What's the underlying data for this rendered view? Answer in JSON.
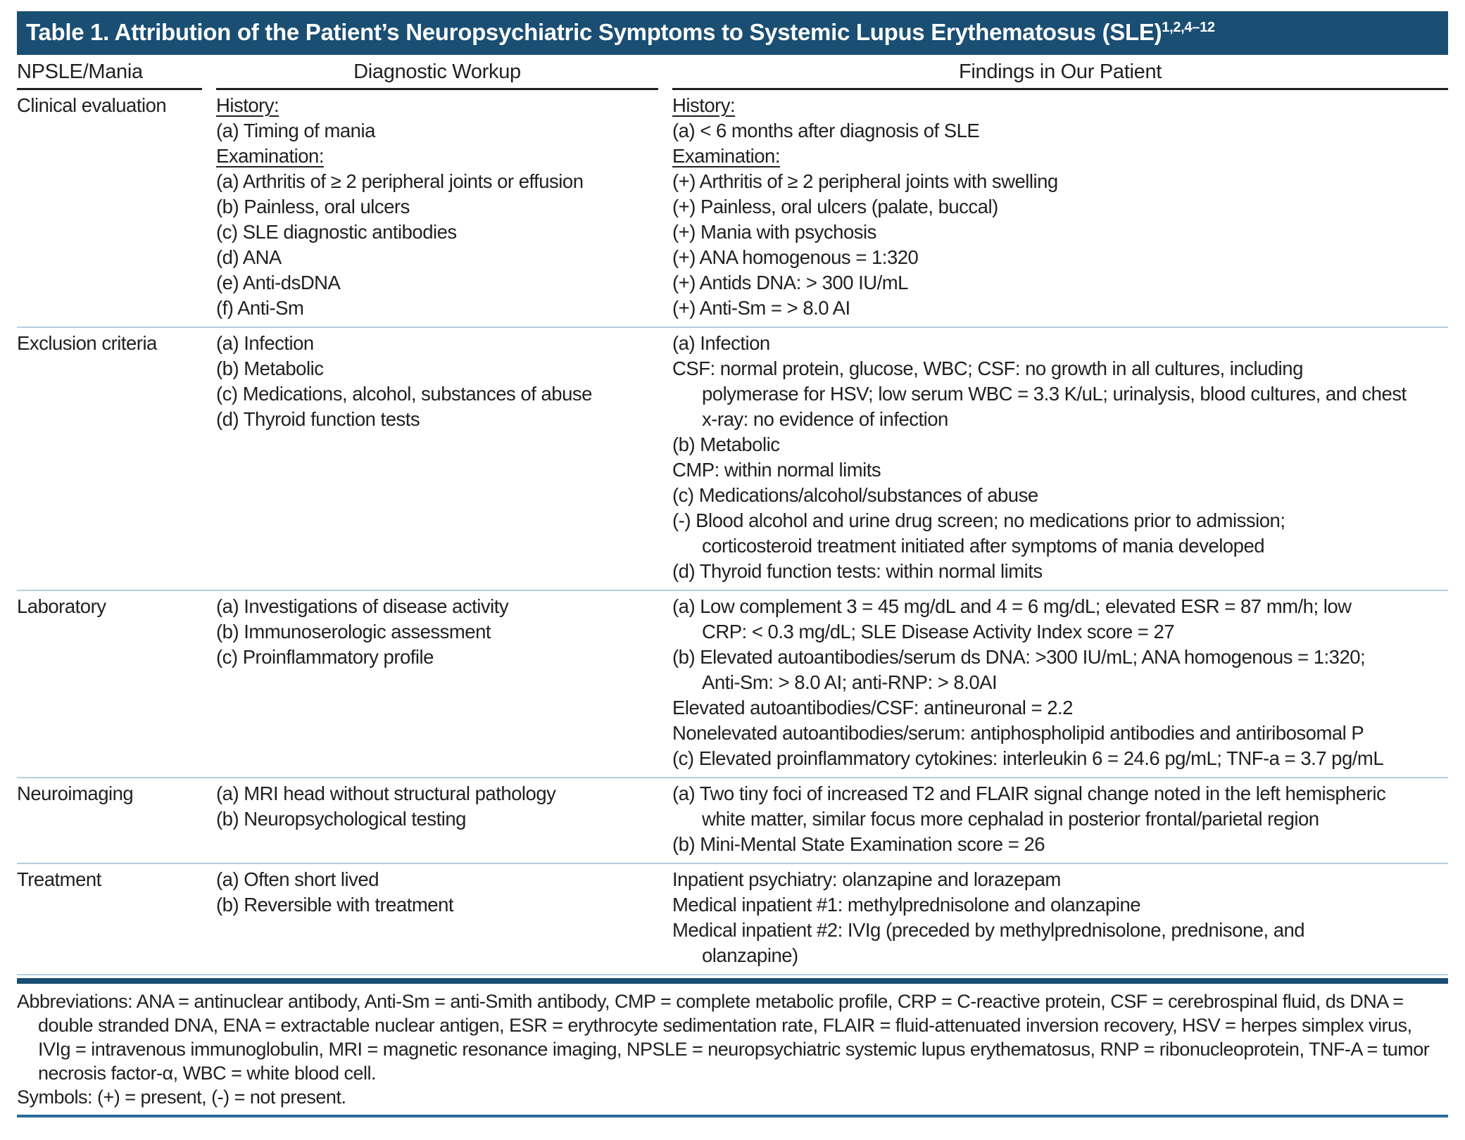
{
  "title": {
    "text": "Table 1. Attribution of the Patient’s Neuropsychiatric Symptoms to Systemic Lupus Erythematosus (SLE)",
    "superscript": "1,2,4–12"
  },
  "columns": [
    "NPSLE/Mania",
    "Diagnostic Workup",
    "Findings in Our Patient"
  ],
  "rows": [
    {
      "label": "Clinical evaluation",
      "workup": [
        {
          "text": "History:",
          "u": true
        },
        {
          "text": "(a) Timing of mania"
        },
        {
          "text": "Examination:",
          "u": true
        },
        {
          "text": "(a) Arthritis of ≥ 2 peripheral joints or effusion"
        },
        {
          "text": "(b) Painless, oral ulcers"
        },
        {
          "text": "(c) SLE diagnostic antibodies"
        },
        {
          "text": "(d) ANA"
        },
        {
          "text": "(e) Anti-dsDNA"
        },
        {
          "text": "(f) Anti-Sm"
        }
      ],
      "findings": [
        {
          "text": "History:",
          "u": true
        },
        {
          "text": "(a) < 6 months after diagnosis of SLE"
        },
        {
          "text": "Examination:",
          "u": true
        },
        {
          "text": "(+) Arthritis of ≥ 2 peripheral joints with swelling"
        },
        {
          "text": "(+) Painless, oral ulcers (palate, buccal)"
        },
        {
          "text": "(+) Mania with psychosis"
        },
        {
          "text": "(+) ANA homogenous = 1:320"
        },
        {
          "text": "(+) Antids DNA: > 300 IU/mL"
        },
        {
          "text": "(+) Anti-Sm = > 8.0 AI"
        }
      ]
    },
    {
      "label": "Exclusion criteria",
      "workup": [
        {
          "text": "(a) Infection"
        },
        {
          "text": "(b) Metabolic"
        },
        {
          "text": "(c) Medications, alcohol, substances of abuse"
        },
        {
          "text": "(d) Thyroid function tests"
        }
      ],
      "findings": [
        {
          "text": "(a) Infection"
        },
        {
          "text": "CSF: normal protein, glucose, WBC; CSF: no growth in all cultures, including"
        },
        {
          "text": "polymerase for HSV; low serum WBC = 3.3 K/uL; urinalysis, blood cultures, and chest",
          "indent": true
        },
        {
          "text": "x-ray: no evidence of infection",
          "indent": true
        },
        {
          "text": "(b) Metabolic"
        },
        {
          "text": "CMP: within normal limits"
        },
        {
          "text": "(c) Medications/alcohol/substances of abuse"
        },
        {
          "text": "(-) Blood alcohol and urine drug screen; no medications prior to admission;"
        },
        {
          "text": "corticosteroid treatment initiated after symptoms of mania developed",
          "indent": true
        },
        {
          "text": "(d) Thyroid function tests: within normal limits"
        }
      ]
    },
    {
      "label": "Laboratory",
      "workup": [
        {
          "text": "(a) Investigations of disease activity"
        },
        {
          "text": "(b) Immunoserologic assessment"
        },
        {
          "text": "(c) Proinflammatory profile"
        }
      ],
      "findings": [
        {
          "text": "(a) Low complement 3 = 45 mg/dL and 4 = 6 mg/dL; elevated ESR = 87 mm/h; low"
        },
        {
          "text": "CRP: < 0.3 mg/dL; SLE Disease Activity Index score = 27",
          "indent": true
        },
        {
          "text": "(b) Elevated autoantibodies/serum ds DNA: >300 IU/mL; ANA homogenous = 1:320;"
        },
        {
          "text": "Anti-Sm: > 8.0 AI; anti-RNP: > 8.0AI",
          "indent": true
        },
        {
          "text": "Elevated autoantibodies/CSF: antineuronal = 2.2"
        },
        {
          "text": "Nonelevated autoantibodies/serum: antiphospholipid antibodies and antiribosomal P"
        },
        {
          "text": "(c) Elevated proinflammatory cytokines: interleukin 6 = 24.6 pg/mL; TNF-a = 3.7 pg/mL"
        }
      ]
    },
    {
      "label": "Neuroimaging",
      "workup": [
        {
          "text": "(a) MRI head without structural pathology"
        },
        {
          "text": "(b) Neuropsychological testing"
        }
      ],
      "findings": [
        {
          "text": "(a) Two tiny foci of increased T2 and FLAIR signal change noted in the left hemispheric"
        },
        {
          "text": "white matter, similar focus more cephalad in posterior frontal/parietal region",
          "indent": true
        },
        {
          "text": "(b) Mini-Mental State Examination score = 26"
        }
      ]
    },
    {
      "label": "Treatment",
      "workup": [
        {
          "text": "(a) Often short lived"
        },
        {
          "text": "(b) Reversible with treatment"
        }
      ],
      "findings": [
        {
          "text": "Inpatient psychiatry: olanzapine and lorazepam"
        },
        {
          "text": "Medical inpatient #1: methylprednisolone and olanzapine"
        },
        {
          "text": "Medical inpatient #2: IVIg (preceded by methylprednisolone, prednisone, and"
        },
        {
          "text": "olanzapine)",
          "indent": true
        }
      ]
    }
  ],
  "footnotes": {
    "abbreviations": "Abbreviations: ANA = antinuclear antibody, Anti-Sm = anti-Smith antibody, CMP = complete metabolic profile, CRP = C-reactive protein, CSF = cerebrospinal fluid, ds DNA = double stranded DNA, ENA = extractable nuclear antigen, ESR = erythrocyte sedimentation rate, FLAIR = fluid-attenuated inversion recovery, HSV = herpes simplex virus, IVIg = intravenous immunoglobulin, MRI = magnetic resonance imaging, NPSLE = neuropsychiatric systemic lupus erythematosus, RNP = ribonucleoprotein, TNF-A = tumor necrosis factor-α, WBC = white blood cell.",
    "symbols": "Symbols: (+) = present, (-) = not present."
  },
  "colors": {
    "header_bar": "#1a4e73",
    "header_text": "#ffffff",
    "column_header_rule": "#231f20",
    "row_divider": "#b5cede",
    "thick_rule": "#1a4e73",
    "bottom_rule": "#2b6a9b",
    "body_text": "#231f20"
  }
}
